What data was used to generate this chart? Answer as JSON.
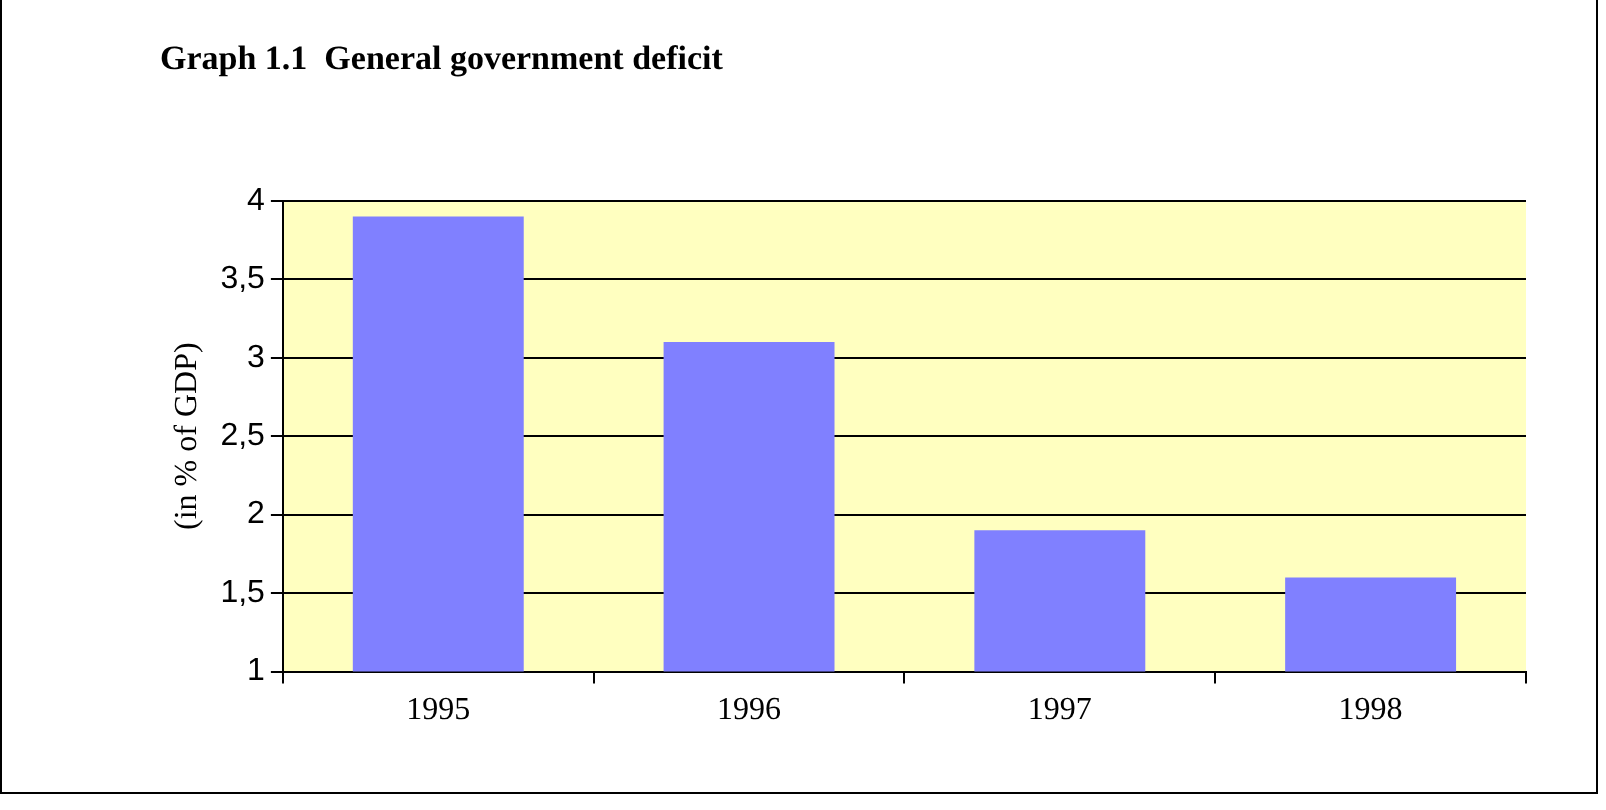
{
  "chart_data": {
    "type": "bar",
    "title": "Graph 1.1  General government deficit",
    "ylabel": "(in % of GDP)",
    "categories": [
      "1995",
      "1996",
      "1997",
      "1998"
    ],
    "values": [
      3.9,
      3.1,
      1.9,
      1.6
    ],
    "color": "#8080ff",
    "ylim": [
      1,
      4
    ],
    "yticks": [
      1,
      {
        "value": 1.5,
        "label": "1,5"
      },
      2,
      {
        "value": 2.5,
        "label": "2,5"
      },
      3,
      {
        "value": 3.5,
        "label": "3,5"
      },
      4
    ],
    "grid": "y",
    "legend": false
  }
}
